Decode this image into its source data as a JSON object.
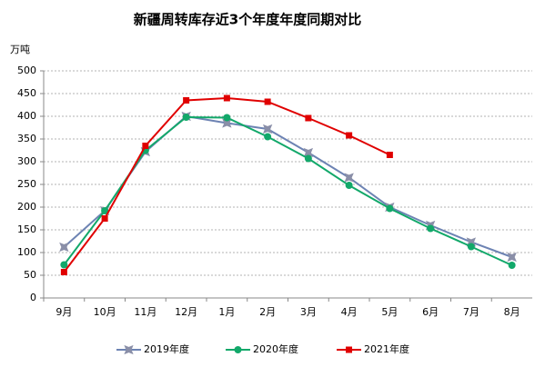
{
  "chart_data": {
    "type": "line",
    "title": "新疆周转库存近3个年度年度同期对比",
    "y_label": "万吨",
    "categories": [
      "9月",
      "10月",
      "11月",
      "12月",
      "1月",
      "2月",
      "3月",
      "4月",
      "5月",
      "6月",
      "7月",
      "8月"
    ],
    "series": [
      {
        "name": "2019年度",
        "color": "#6d83b3",
        "marker": "star",
        "marker_color": "#8a8fa8",
        "values": [
          112,
          192,
          322,
          400,
          385,
          372,
          320,
          265,
          200,
          160,
          123,
          90
        ]
      },
      {
        "name": "2020年度",
        "color": "#12a86a",
        "marker": "circle",
        "marker_color": "#12a86a",
        "values": [
          73,
          192,
          325,
          398,
          397,
          355,
          307,
          248,
          197,
          153,
          113,
          72
        ]
      },
      {
        "name": "2021年度",
        "color": "#e00000",
        "marker": "square",
        "marker_color": "#e00000",
        "values": [
          57,
          175,
          335,
          435,
          440,
          432,
          396,
          358,
          315,
          null,
          null,
          null
        ]
      }
    ],
    "ylim": [
      0,
      500
    ],
    "yticks": [
      0,
      50,
      100,
      150,
      200,
      250,
      300,
      350,
      400,
      450,
      500
    ],
    "grid": true,
    "legend": "bottom"
  }
}
